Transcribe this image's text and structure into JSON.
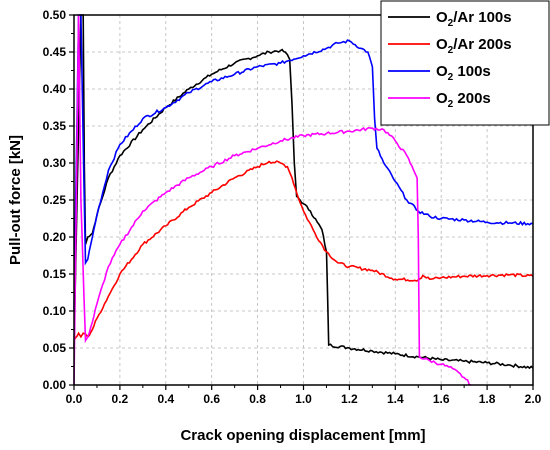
{
  "chart_data": {
    "type": "line",
    "title": "",
    "xlabel": "Crack opening displacement [mm]",
    "ylabel": "Pull-out force [kN]",
    "xlim": [
      0.0,
      2.0
    ],
    "ylim": [
      0.0,
      0.5
    ],
    "x_ticks": [
      "0.0",
      "0.2",
      "0.4",
      "0.6",
      "0.8",
      "1.0",
      "1.2",
      "1.4",
      "1.6",
      "1.8",
      "2.0"
    ],
    "y_ticks": [
      "0.00",
      "0.05",
      "0.10",
      "0.15",
      "0.20",
      "0.25",
      "0.30",
      "0.35",
      "0.40",
      "0.45",
      "0.50"
    ],
    "grid": true,
    "legend_position": "top-right",
    "series": [
      {
        "name": "O2/Ar 100s",
        "legend_main": "O",
        "legend_sub": "2",
        "legend_rest": "/Ar 100s",
        "color": "#000000",
        "x": [
          0.0,
          0.03,
          0.04,
          0.045,
          0.05,
          0.06,
          0.08,
          0.1,
          0.15,
          0.2,
          0.3,
          0.4,
          0.5,
          0.6,
          0.7,
          0.8,
          0.85,
          0.9,
          0.92,
          0.94,
          0.95,
          0.96,
          0.97,
          1.0,
          1.03,
          1.06,
          1.08,
          1.1,
          1.105,
          1.11,
          1.2,
          1.3,
          1.4,
          1.5,
          1.6,
          1.7,
          1.8,
          1.9,
          2.0
        ],
        "y": [
          0.05,
          0.5,
          0.5,
          0.3,
          0.19,
          0.2,
          0.205,
          0.23,
          0.28,
          0.31,
          0.345,
          0.375,
          0.4,
          0.42,
          0.435,
          0.445,
          0.45,
          0.452,
          0.45,
          0.44,
          0.38,
          0.3,
          0.255,
          0.245,
          0.235,
          0.22,
          0.21,
          0.18,
          0.12,
          0.054,
          0.05,
          0.046,
          0.042,
          0.038,
          0.034,
          0.032,
          0.03,
          0.027,
          0.023
        ]
      },
      {
        "name": "O2/Ar 200s",
        "legend_main": "O",
        "legend_sub": "2",
        "legend_rest": "/Ar 200s",
        "color": "#ff0000",
        "x": [
          0.0,
          0.02,
          0.03,
          0.04,
          0.06,
          0.08,
          0.1,
          0.15,
          0.2,
          0.3,
          0.4,
          0.5,
          0.6,
          0.7,
          0.8,
          0.85,
          0.9,
          0.93,
          0.95,
          0.97,
          1.0,
          1.05,
          1.1,
          1.15,
          1.2,
          1.3,
          1.4,
          1.5,
          1.52,
          1.55,
          1.6,
          1.7,
          1.8,
          1.9,
          2.0
        ],
        "y": [
          0.06,
          0.07,
          0.065,
          0.07,
          0.065,
          0.075,
          0.09,
          0.12,
          0.15,
          0.19,
          0.215,
          0.24,
          0.26,
          0.28,
          0.295,
          0.302,
          0.3,
          0.295,
          0.28,
          0.26,
          0.235,
          0.205,
          0.18,
          0.165,
          0.16,
          0.155,
          0.143,
          0.142,
          0.148,
          0.143,
          0.145,
          0.147,
          0.148,
          0.149,
          0.147
        ]
      },
      {
        "name": "O2 100s",
        "legend_main": "O",
        "legend_sub": "2",
        "legend_rest": " 100s",
        "color": "#0000ff",
        "x": [
          0.0,
          0.02,
          0.03,
          0.05,
          0.06,
          0.08,
          0.1,
          0.15,
          0.2,
          0.3,
          0.4,
          0.5,
          0.6,
          0.7,
          0.8,
          0.9,
          1.0,
          1.1,
          1.15,
          1.2,
          1.25,
          1.28,
          1.3,
          1.31,
          1.32,
          1.35,
          1.4,
          1.45,
          1.5,
          1.55,
          1.6,
          1.7,
          1.8,
          1.9,
          2.0
        ],
        "y": [
          0.1,
          0.5,
          0.5,
          0.165,
          0.17,
          0.2,
          0.23,
          0.29,
          0.325,
          0.36,
          0.375,
          0.395,
          0.41,
          0.42,
          0.43,
          0.435,
          0.445,
          0.455,
          0.462,
          0.465,
          0.455,
          0.45,
          0.43,
          0.36,
          0.32,
          0.3,
          0.275,
          0.25,
          0.235,
          0.228,
          0.225,
          0.223,
          0.22,
          0.219,
          0.218
        ]
      },
      {
        "name": "O2 200s",
        "legend_main": "O",
        "legend_sub": "2",
        "legend_rest": " 200s",
        "color": "#ff00ff",
        "x": [
          0.0,
          0.02,
          0.03,
          0.05,
          0.06,
          0.08,
          0.1,
          0.15,
          0.2,
          0.3,
          0.4,
          0.5,
          0.6,
          0.7,
          0.8,
          0.9,
          1.0,
          1.1,
          1.2,
          1.3,
          1.35,
          1.4,
          1.45,
          1.48,
          1.495,
          1.5,
          1.505,
          1.55,
          1.6,
          1.65,
          1.7,
          1.73
        ],
        "y": [
          0.0,
          0.5,
          0.25,
          0.06,
          0.065,
          0.085,
          0.11,
          0.16,
          0.19,
          0.235,
          0.26,
          0.28,
          0.295,
          0.31,
          0.32,
          0.33,
          0.337,
          0.34,
          0.343,
          0.347,
          0.345,
          0.33,
          0.31,
          0.29,
          0.28,
          0.2,
          0.038,
          0.033,
          0.028,
          0.022,
          0.01,
          0.0
        ]
      }
    ]
  }
}
